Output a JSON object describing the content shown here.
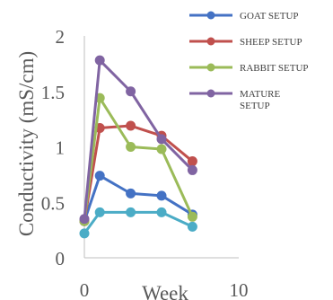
{
  "chart_data": {
    "type": "line",
    "xlabel": "Week",
    "ylabel": "Conductivity (mS/cm)",
    "xlim": [
      0,
      10
    ],
    "ylim": [
      0,
      2
    ],
    "xticks": [
      "0",
      "10"
    ],
    "yticks": [
      "0",
      "0.5",
      "1",
      "1.5",
      "2"
    ],
    "grid": false,
    "legend_position": "top-right",
    "series": [
      {
        "name": "GOAT SETUP",
        "color": "#4472c4",
        "x": [
          0,
          1,
          3,
          5,
          7
        ],
        "y": [
          0.33,
          0.74,
          0.58,
          0.56,
          0.39
        ]
      },
      {
        "name": "SHEEP SETUP",
        "color": "#c0504d",
        "x": [
          0,
          1,
          3,
          5,
          7
        ],
        "y": [
          0.33,
          1.17,
          1.19,
          1.1,
          0.87
        ]
      },
      {
        "name": "RABBIT SETUP",
        "color": "#9bbb59",
        "x": [
          0,
          1,
          3,
          5,
          7
        ],
        "y": [
          0.33,
          1.44,
          1.0,
          0.98,
          0.37
        ]
      },
      {
        "name": "MATURE\nSETUP",
        "color": "#8064a2",
        "x": [
          0,
          1,
          3,
          5,
          7
        ],
        "y": [
          0.35,
          1.78,
          1.5,
          1.07,
          0.79
        ]
      },
      {
        "name": "",
        "color": "#4bacc6",
        "x": [
          0,
          1,
          3,
          5,
          7
        ],
        "y": [
          0.22,
          0.41,
          0.41,
          0.41,
          0.28
        ]
      }
    ]
  }
}
